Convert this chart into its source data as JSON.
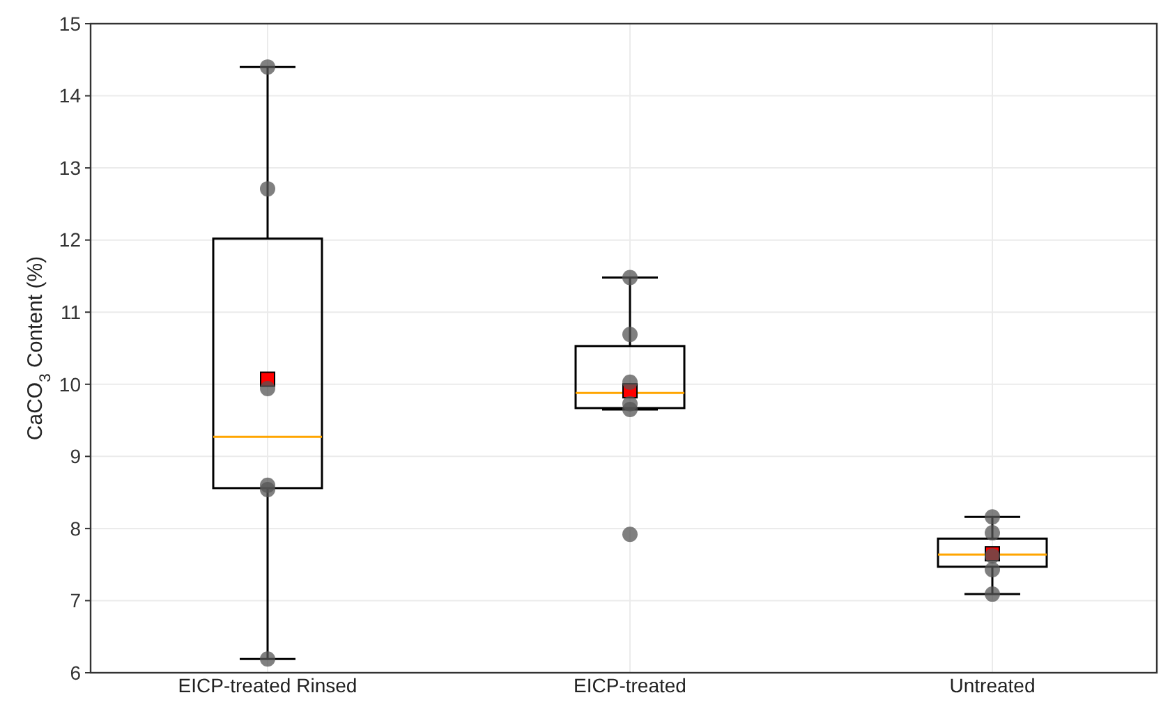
{
  "chart_data": {
    "type": "box",
    "ylabel": "CaCO$_{3}$ Content (%)",
    "categories": [
      "EICP-treated Rinsed",
      "EICP-treated",
      "Untreated"
    ],
    "ylim": [
      6,
      15
    ],
    "yticks": [
      6,
      7,
      8,
      9,
      10,
      11,
      12,
      13,
      14,
      15
    ],
    "grid": true,
    "series": [
      {
        "color": "#000000",
        "boxes": [
          {
            "low": 6.19,
            "q1": 8.56,
            "median": 9.27,
            "q3": 12.02,
            "high": 14.4,
            "mean": 10.07
          },
          {
            "low": 9.65,
            "q1": 9.67,
            "median": 9.88,
            "q3": 10.53,
            "high": 11.48,
            "mean": 9.91
          },
          {
            "low": 7.09,
            "q1": 7.47,
            "median": 7.64,
            "q3": 7.86,
            "high": 8.16,
            "mean": 7.65
          }
        ]
      },
      {
        "type": "scatter",
        "color": "#555555",
        "x": [
          "EICP-treated Rinsed",
          "EICP-treated Rinsed",
          "EICP-treated Rinsed",
          "EICP-treated Rinsed",
          "EICP-treated Rinsed",
          "EICP-treated Rinsed",
          "EICP-treated",
          "EICP-treated",
          "EICP-treated",
          "EICP-treated",
          "EICP-treated",
          "EICP-treated",
          "Untreated",
          "Untreated",
          "Untreated",
          "Untreated",
          "Untreated"
        ],
        "values": [
          14.4,
          12.71,
          9.94,
          8.54,
          8.6,
          6.19,
          11.48,
          10.69,
          10.03,
          9.65,
          9.73,
          7.92,
          8.16,
          7.94,
          7.62,
          7.43,
          7.09
        ]
      }
    ]
  }
}
